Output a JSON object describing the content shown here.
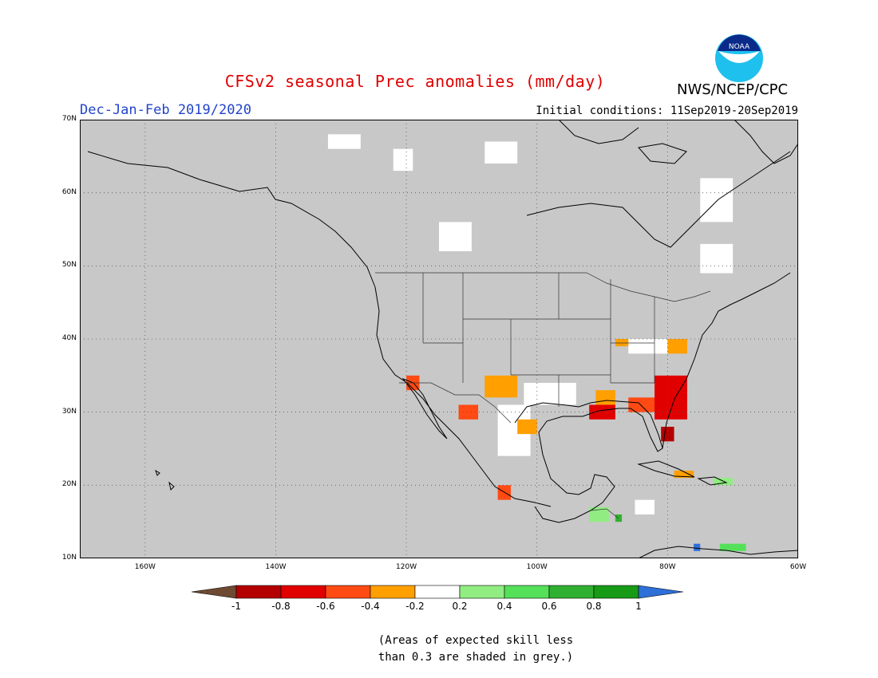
{
  "header": {
    "title": "CFSv2 seasonal Prec anomalies (mm/day)",
    "season": "Dec-Jan-Feb 2019/2020",
    "initial_conditions": "Initial conditions: 11Sep2019-20Sep2019",
    "org": "NWS/NCEP/CPC",
    "logo_text": "NOAA"
  },
  "map": {
    "lon_range": [
      -170,
      -60
    ],
    "lat_range": [
      10,
      70
    ],
    "lat_labels": [
      "70N",
      "60N",
      "50N",
      "40N",
      "30N",
      "20N",
      "10N"
    ],
    "lat_values": [
      70,
      60,
      50,
      40,
      30,
      20,
      10
    ],
    "lon_labels": [
      "160W",
      "140W",
      "120W",
      "100W",
      "80W",
      "60W"
    ],
    "lon_values": [
      -160,
      -140,
      -120,
      -100,
      -80,
      -60
    ],
    "colors": {
      "background_grey": "#c8c8c8",
      "land_outline": "#000000",
      "grid": "#666666"
    },
    "anomaly_regions": [
      {
        "category": "-0.2..0.2",
        "lon": -102,
        "lat": 31,
        "w": 8,
        "h": 3
      },
      {
        "category": "-0.2..0.2",
        "lon": -106,
        "lat": 24,
        "w": 5,
        "h": 7
      },
      {
        "category": "-0.2..0.2",
        "lon": -86,
        "lat": 38,
        "w": 6,
        "h": 2
      },
      {
        "category": "-0.2..0.2",
        "lon": -85,
        "lat": 16,
        "w": 3,
        "h": 2
      },
      {
        "category": "-0.2..0.2",
        "lon": -132,
        "lat": 66,
        "w": 5,
        "h": 2
      },
      {
        "category": "-0.2..0.2",
        "lon": -115,
        "lat": 52,
        "w": 5,
        "h": 4
      },
      {
        "category": "-0.2..0.2",
        "lon": -108,
        "lat": 64,
        "w": 5,
        "h": 3
      },
      {
        "category": "-0.2..0.2",
        "lon": -122,
        "lat": 63,
        "w": 3,
        "h": 3
      },
      {
        "category": "-0.2..0.2",
        "lon": -75,
        "lat": 56,
        "w": 5,
        "h": 6
      },
      {
        "category": "-0.2..0.2",
        "lon": -75,
        "lat": 49,
        "w": 5,
        "h": 4
      },
      {
        "category": "-0.4..-0.2",
        "lon": -108,
        "lat": 32,
        "w": 5,
        "h": 3
      },
      {
        "category": "-0.4..-0.2",
        "lon": -103,
        "lat": 27,
        "w": 3,
        "h": 2
      },
      {
        "category": "-0.4..-0.2",
        "lon": -91,
        "lat": 31,
        "w": 3,
        "h": 2
      },
      {
        "category": "-0.4..-0.2",
        "lon": -80,
        "lat": 38,
        "w": 3,
        "h": 2
      },
      {
        "category": "-0.4..-0.2",
        "lon": -88,
        "lat": 39,
        "w": 2,
        "h": 1
      },
      {
        "category": "-0.4..-0.2",
        "lon": -79,
        "lat": 21,
        "w": 3,
        "h": 1
      },
      {
        "category": "-0.6..-0.4",
        "lon": -86,
        "lat": 30,
        "w": 6,
        "h": 2
      },
      {
        "category": "-0.6..-0.4",
        "lon": -112,
        "lat": 29,
        "w": 3,
        "h": 2
      },
      {
        "category": "-0.6..-0.4",
        "lon": -120,
        "lat": 33,
        "w": 2,
        "h": 2
      },
      {
        "category": "-0.6..-0.4",
        "lon": -106,
        "lat": 18,
        "w": 2,
        "h": 2
      },
      {
        "category": "-0.8..-0.6",
        "lon": -82,
        "lat": 29,
        "w": 5,
        "h": 6
      },
      {
        "category": "-0.8..-0.6",
        "lon": -92,
        "lat": 29,
        "w": 4,
        "h": 2
      },
      {
        "category": "-1..-0.8",
        "lon": -81,
        "lat": 26,
        "w": 2,
        "h": 2
      },
      {
        "category": "0.2..0.4",
        "lon": -92,
        "lat": 15,
        "w": 3,
        "h": 2
      },
      {
        "category": "0.2..0.4",
        "lon": -73,
        "lat": 20,
        "w": 3,
        "h": 1
      },
      {
        "category": "0.4..0.6",
        "lon": -72,
        "lat": 11,
        "w": 4,
        "h": 1
      },
      {
        "category": "0.6..0.8",
        "lon": -88,
        "lat": 15,
        "w": 1,
        "h": 1
      },
      {
        "category": ">1",
        "lon": -76,
        "lat": 11,
        "w": 1,
        "h": 1
      }
    ]
  },
  "legend": {
    "labels": [
      "-1",
      "-0.8",
      "-0.6",
      "-0.4",
      "-0.2",
      "0.2",
      "0.4",
      "0.6",
      "0.8",
      "1"
    ],
    "colors": [
      "#6e4a33",
      "#b40000",
      "#e10000",
      "#ff4a14",
      "#ff9f00",
      "#ffffff",
      "#91ed82",
      "#55e05a",
      "#30b030",
      "#179b17",
      "#2e6fd8"
    ]
  },
  "note": {
    "line1": "(Areas of expected skill less",
    "line2": "than 0.3 are shaded in grey.)"
  }
}
